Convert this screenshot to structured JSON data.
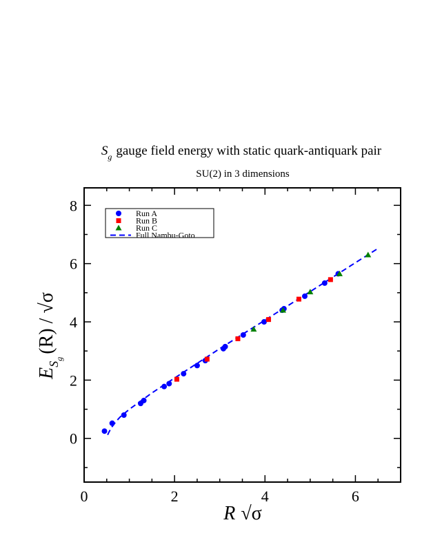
{
  "title": {
    "symbol": "S",
    "symbol_sub": "g",
    "text": "gauge field energy with static quark-antiquark pair",
    "subtitle": "SU(2) in 3 dimensions"
  },
  "ylabel": {
    "main": "E",
    "sub": "S",
    "subsub": "g",
    "rest": "(R) / √σ"
  },
  "xlabel": {
    "main": "R",
    "rest": "√σ"
  },
  "colors": {
    "run_a": "#0000ff",
    "run_b": "#ff0000",
    "run_c": "#008000",
    "fit": "#0000ff"
  },
  "chart_data": {
    "type": "scatter",
    "xlim": [
      0,
      7
    ],
    "ylim": [
      -1.5,
      8.6
    ],
    "xticks": [
      0,
      2,
      4,
      6
    ],
    "yticks": [
      0,
      2,
      4,
      6,
      8
    ],
    "xtick_labels": [
      "0",
      "2",
      "4",
      "6"
    ],
    "ytick_labels": [
      "0",
      "2",
      "4",
      "6",
      "8"
    ],
    "grid": false,
    "legend_position": "top-left",
    "series": [
      {
        "name": "Run A",
        "marker": "circle",
        "color": "#0000ff",
        "x": [
          0.45,
          0.62,
          0.88,
          1.25,
          1.32,
          1.77,
          1.88,
          2.2,
          2.5,
          2.68,
          3.08,
          3.12,
          3.52,
          3.98,
          4.38,
          4.42,
          4.88,
          5.32,
          5.62
        ],
        "y": [
          0.25,
          0.52,
          0.8,
          1.2,
          1.3,
          1.78,
          1.88,
          2.22,
          2.5,
          2.67,
          3.08,
          3.15,
          3.55,
          4.0,
          4.4,
          4.45,
          4.88,
          5.33,
          5.65
        ]
      },
      {
        "name": "Run B",
        "marker": "square",
        "color": "#ff0000",
        "x": [
          2.05,
          2.72,
          3.4,
          4.08,
          4.75,
          5.45
        ],
        "y": [
          2.03,
          2.72,
          3.42,
          4.08,
          4.78,
          5.45
        ]
      },
      {
        "name": "Run C",
        "marker": "triangle",
        "color": "#008000",
        "x": [
          3.75,
          4.4,
          5.0,
          5.65,
          6.28
        ],
        "y": [
          3.75,
          4.4,
          5.03,
          5.65,
          6.3
        ]
      },
      {
        "name": "Full Nambu-Goto",
        "type": "line",
        "style": "dashed",
        "color": "#0000ff",
        "x": [
          0.52,
          0.55,
          0.6,
          0.7,
          0.8,
          1.0,
          1.5,
          2.0,
          3.0,
          4.0,
          5.0,
          6.0,
          6.5
        ],
        "y": [
          0.12,
          0.22,
          0.36,
          0.57,
          0.74,
          1.0,
          1.56,
          2.07,
          3.08,
          4.06,
          5.04,
          6.03,
          6.52
        ]
      }
    ]
  }
}
